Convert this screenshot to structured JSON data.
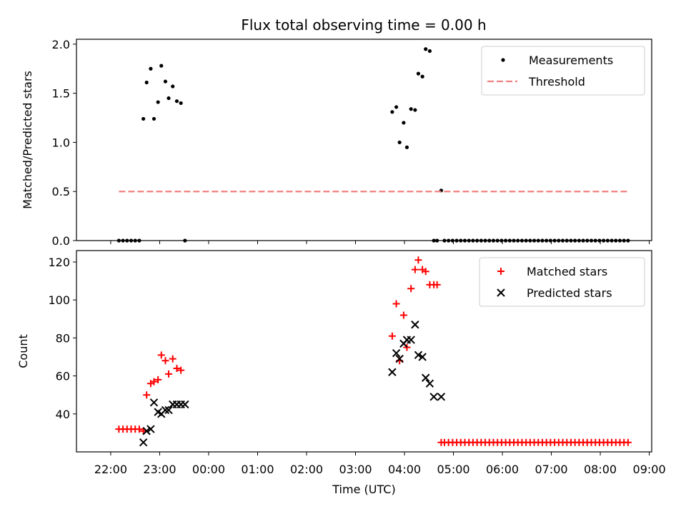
{
  "title": "Flux total observing time = 0.00 h",
  "chart_data": [
    {
      "type": "scatter",
      "ylabel": "Matched/Predicted stars",
      "ylim": [
        0,
        2.05
      ],
      "yticks": [
        0.0,
        0.5,
        1.0,
        1.5,
        2.0
      ],
      "ytick_labels": [
        "0.0",
        "0.5",
        "1.0",
        "1.5",
        "2.0"
      ],
      "legend_position": "upper right",
      "series": [
        {
          "name": "Measurements",
          "kind": "points",
          "color": "#000000",
          "x": [
            "22:10",
            "22:15",
            "22:20",
            "22:25",
            "22:30",
            "22:35",
            "22:40",
            "22:44",
            "22:49",
            "22:53",
            "22:58",
            "23:02",
            "23:07",
            "23:11",
            "23:16",
            "23:21",
            "23:26",
            "23:31",
            "03:45",
            "03:50",
            "03:54",
            "03:59",
            "04:03",
            "04:08",
            "04:13",
            "04:17",
            "04:22",
            "04:26",
            "04:31",
            "04:36",
            "04:40",
            "04:45",
            "04:49",
            "04:54",
            "04:59",
            "05:04",
            "05:09",
            "05:14",
            "05:19",
            "05:24",
            "05:29",
            "05:34",
            "05:39",
            "05:44",
            "05:49",
            "05:54",
            "05:59",
            "06:04",
            "06:09",
            "06:14",
            "06:19",
            "06:24",
            "06:29",
            "06:34",
            "06:39",
            "06:44",
            "06:49",
            "06:54",
            "06:59",
            "07:04",
            "07:09",
            "07:14",
            "07:19",
            "07:24",
            "07:29",
            "07:34",
            "07:39",
            "07:44",
            "07:49",
            "07:54",
            "07:59",
            "08:04",
            "08:09",
            "08:14",
            "08:19",
            "08:24",
            "08:29",
            "08:34"
          ],
          "y": [
            0,
            0,
            0,
            0,
            0,
            0,
            1.24,
            1.61,
            1.75,
            1.24,
            1.41,
            1.78,
            1.62,
            1.45,
            1.57,
            1.42,
            1.4,
            0,
            1.31,
            1.36,
            1.0,
            1.2,
            0.95,
            1.34,
            1.33,
            1.7,
            1.67,
            1.95,
            1.93,
            0,
            0,
            0.51,
            0,
            0,
            0,
            0,
            0,
            0,
            0,
            0,
            0,
            0,
            0,
            0,
            0,
            0,
            0,
            0,
            0,
            0,
            0,
            0,
            0,
            0,
            0,
            0,
            0,
            0,
            0,
            0,
            0,
            0,
            0,
            0,
            0,
            0,
            0,
            0,
            0,
            0,
            0,
            0,
            0,
            0,
            0,
            0,
            0,
            0
          ]
        },
        {
          "name": "Threshold",
          "kind": "dashed-line",
          "color": "#f08080",
          "x": [
            "22:10",
            "08:35"
          ],
          "y": [
            0.5,
            0.5
          ]
        }
      ]
    },
    {
      "type": "scatter",
      "ylabel": "Count",
      "xlabel": "Time (UTC)",
      "ylim": [
        20,
        126
      ],
      "yticks": [
        40,
        60,
        80,
        100,
        120
      ],
      "ytick_labels": [
        "40",
        "60",
        "80",
        "100",
        "120"
      ],
      "xticks": [
        "22:00",
        "23:00",
        "00:00",
        "01:00",
        "02:00",
        "03:00",
        "04:00",
        "05:00",
        "06:00",
        "07:00",
        "08:00",
        "09:00"
      ],
      "legend_position": "upper right",
      "series": [
        {
          "name": "Matched stars",
          "marker": "plus",
          "color": "#ff0000",
          "x": [
            "22:10",
            "22:15",
            "22:20",
            "22:25",
            "22:30",
            "22:35",
            "22:40",
            "22:44",
            "22:49",
            "22:53",
            "22:58",
            "23:02",
            "23:07",
            "23:11",
            "23:16",
            "23:21",
            "23:26",
            "23:31",
            "03:45",
            "03:50",
            "03:54",
            "03:59",
            "04:03",
            "04:08",
            "04:13",
            "04:17",
            "04:22",
            "04:26",
            "04:31",
            "04:36",
            "04:40",
            "04:45",
            "04:49",
            "04:54",
            "04:59",
            "05:04",
            "05:09",
            "05:14",
            "05:19",
            "05:24",
            "05:29",
            "05:34",
            "05:39",
            "05:44",
            "05:49",
            "05:54",
            "05:59",
            "06:04",
            "06:09",
            "06:14",
            "06:19",
            "06:24",
            "06:29",
            "06:34",
            "06:39",
            "06:44",
            "06:49",
            "06:54",
            "06:59",
            "07:04",
            "07:09",
            "07:14",
            "07:19",
            "07:24",
            "07:29",
            "07:34",
            "07:39",
            "07:44",
            "07:49",
            "07:54",
            "07:59",
            "08:04",
            "08:09",
            "08:14",
            "08:19",
            "08:24",
            "08:29",
            "08:34"
          ],
          "y": [
            32,
            32,
            32,
            32,
            32,
            32,
            31,
            50,
            56,
            57,
            58,
            71,
            68,
            61,
            69,
            64,
            63,
            null,
            81,
            98,
            68,
            92,
            75,
            106,
            116,
            121,
            116,
            115,
            108,
            108,
            108,
            25,
            25,
            25,
            25,
            25,
            25,
            25,
            25,
            25,
            25,
            25,
            25,
            25,
            25,
            25,
            25,
            25,
            25,
            25,
            25,
            25,
            25,
            25,
            25,
            25,
            25,
            25,
            25,
            25,
            25,
            25,
            25,
            25,
            25,
            25,
            25,
            25,
            25,
            25,
            25,
            25,
            25,
            25,
            25,
            25,
            25,
            25
          ]
        },
        {
          "name": "Predicted stars",
          "marker": "x",
          "color": "#000000",
          "x": [
            "22:40",
            "22:44",
            "22:49",
            "22:53",
            "22:58",
            "23:02",
            "23:07",
            "23:11",
            "23:16",
            "23:21",
            "23:26",
            "23:31",
            "03:45",
            "03:50",
            "03:54",
            "03:59",
            "04:03",
            "04:08",
            "04:13",
            "04:17",
            "04:22",
            "04:26",
            "04:31",
            "04:36",
            "04:45"
          ],
          "y": [
            25,
            31,
            32,
            46,
            41,
            40,
            42,
            42,
            45,
            45,
            45,
            45,
            62,
            72,
            69,
            77,
            79,
            79,
            87,
            71,
            70,
            59,
            56,
            49,
            49
          ]
        }
      ]
    }
  ]
}
